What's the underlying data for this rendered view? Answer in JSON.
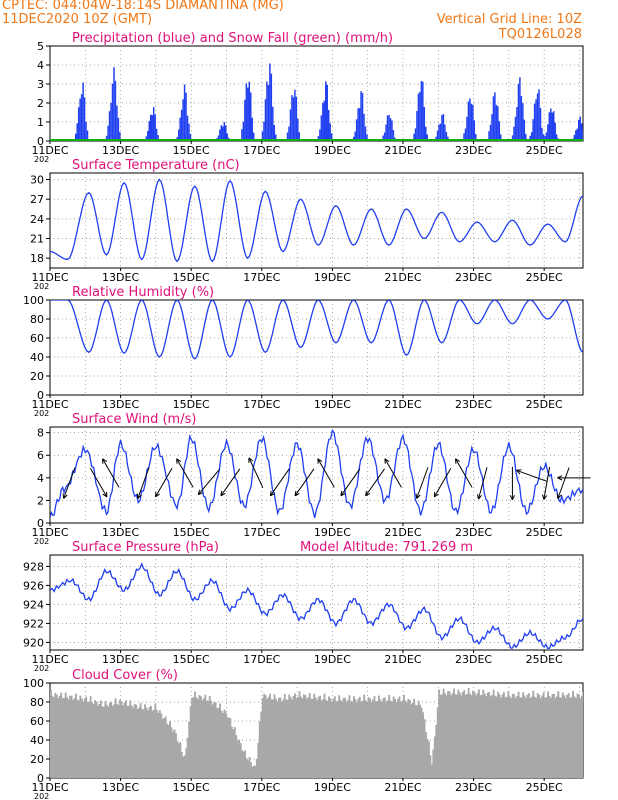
{
  "header": {
    "line1_left": "CPTEC:   044:04W-18:14S   DIAMANTINA (MG)",
    "line2_left": "11DEC2020 10Z (GMT)",
    "line1_right": "Vertical Grid Line: 10Z",
    "line2_right": "TQ0126L028"
  },
  "colors": {
    "header": "#f07818",
    "title": "#e0107a",
    "line": "#1f3ff0",
    "snow": "#10b010",
    "cloud": "#a8a8a8",
    "grid": "#888888"
  },
  "x_axis": {
    "tick_labels": [
      "11DEC",
      "13DEC",
      "15DEC",
      "17DEC",
      "19DEC",
      "21DEC",
      "23DEC",
      "25DEC"
    ],
    "year_fragment": "202",
    "days_span": 15.1
  },
  "chart_data": [
    {
      "id": "precip",
      "type": "bar",
      "title": "Precipitation (blue) and Snow Fall (green) (mm/h)",
      "ylim": [
        0,
        5
      ],
      "yticks": [
        "0",
        "1",
        "2",
        "3",
        "4",
        "5"
      ],
      "series": [
        {
          "name": "Precipitation",
          "peaks_day_amp": [
            [
              0.9,
              3.2
            ],
            [
              1.8,
              3.9
            ],
            [
              2.9,
              1.9
            ],
            [
              3.8,
              3.0
            ],
            [
              4.9,
              1.1
            ],
            [
              5.6,
              3.7
            ],
            [
              6.2,
              4.4
            ],
            [
              6.9,
              3.1
            ],
            [
              7.8,
              3.3
            ],
            [
              8.8,
              2.8
            ],
            [
              9.6,
              1.6
            ],
            [
              10.5,
              3.6
            ],
            [
              11.1,
              1.5
            ],
            [
              11.9,
              2.6
            ],
            [
              12.6,
              2.8
            ],
            [
              13.3,
              3.5
            ],
            [
              13.8,
              3.0
            ],
            [
              14.2,
              2.0
            ],
            [
              15.0,
              1.3
            ]
          ]
        },
        {
          "name": "Snow Fall",
          "value": 0
        }
      ]
    },
    {
      "id": "temp",
      "type": "line",
      "title": "Surface Temperature (nC)",
      "ylim": [
        16.5,
        31
      ],
      "yticks": [
        "18",
        "21",
        "24",
        "27",
        "30"
      ],
      "x": [
        0,
        0.5,
        1.1,
        1.6,
        2.1,
        2.6,
        3.1,
        3.6,
        4.1,
        4.6,
        5.1,
        5.6,
        6.1,
        6.6,
        7.1,
        7.6,
        8.1,
        8.6,
        9.1,
        9.6,
        10.1,
        10.6,
        11.1,
        11.6,
        12.1,
        12.6,
        13.1,
        13.6,
        14.1,
        14.6,
        15.1
      ],
      "values": [
        19.0,
        17.8,
        28.0,
        18.5,
        29.5,
        17.8,
        30.0,
        17.5,
        29.0,
        17.5,
        29.8,
        18.0,
        28.2,
        19.0,
        27.0,
        20.0,
        26.0,
        20.0,
        25.5,
        20.0,
        25.5,
        21.0,
        25.0,
        20.5,
        23.5,
        20.5,
        23.8,
        20.0,
        23.2,
        20.5,
        27.5
      ]
    },
    {
      "id": "rh",
      "type": "line",
      "title": "Relative Humidity (%)",
      "ylim": [
        0,
        100
      ],
      "yticks": [
        "0",
        "20",
        "40",
        "60",
        "80",
        "100"
      ],
      "x": [
        0,
        0.5,
        1.1,
        1.6,
        2.1,
        2.6,
        3.1,
        3.6,
        4.1,
        4.6,
        5.1,
        5.6,
        6.1,
        6.6,
        7.1,
        7.6,
        8.1,
        8.6,
        9.1,
        9.6,
        10.1,
        10.6,
        11.1,
        11.6,
        12.1,
        12.6,
        13.1,
        13.6,
        14.1,
        14.6,
        15.1
      ],
      "values": [
        100,
        100,
        45,
        100,
        44,
        100,
        40,
        100,
        38,
        100,
        40,
        100,
        45,
        100,
        50,
        100,
        55,
        100,
        55,
        100,
        42,
        100,
        55,
        100,
        75,
        100,
        75,
        100,
        80,
        100,
        45
      ]
    },
    {
      "id": "wind",
      "type": "line",
      "title": "Surface Wind (m/s)",
      "ylim": [
        0,
        8.5
      ],
      "yticks": [
        "0",
        "2",
        "4",
        "6",
        "8"
      ],
      "x": [
        0,
        0.4,
        1.0,
        1.6,
        2.0,
        2.5,
        3.0,
        3.6,
        4.0,
        4.5,
        5.0,
        5.5,
        6.0,
        6.5,
        7.0,
        7.5,
        8.0,
        8.5,
        9.0,
        9.5,
        10.0,
        10.5,
        11.0,
        11.5,
        12.0,
        12.5,
        13.0,
        13.5,
        14.0,
        14.5,
        15.1
      ],
      "values": [
        0.5,
        3.0,
        6.5,
        1.0,
        7.0,
        2.0,
        6.8,
        1.5,
        7.5,
        1.3,
        7.0,
        1.5,
        7.5,
        1.0,
        7.0,
        0.8,
        8.0,
        1.5,
        7.5,
        2.0,
        7.5,
        1.0,
        7.0,
        1.0,
        6.5,
        1.0,
        6.8,
        1.0,
        5.0,
        2.0,
        3.0
      ],
      "arrows_day_speed_dir": [
        [
          0.6,
          4,
          200
        ],
        [
          1.3,
          4,
          150
        ],
        [
          1.8,
          4,
          330
        ],
        [
          2.7,
          4,
          200
        ],
        [
          3.3,
          4,
          210
        ],
        [
          3.9,
          4,
          330
        ],
        [
          4.6,
          4,
          220
        ],
        [
          5.2,
          4,
          215
        ],
        [
          5.9,
          4,
          335
        ],
        [
          6.6,
          4,
          215
        ],
        [
          7.3,
          4,
          215
        ],
        [
          7.9,
          4,
          330
        ],
        [
          8.6,
          4,
          215
        ],
        [
          9.3,
          4,
          215
        ],
        [
          9.8,
          4,
          330
        ],
        [
          10.6,
          4,
          200
        ],
        [
          11.2,
          4,
          210
        ],
        [
          11.8,
          4,
          330
        ],
        [
          12.3,
          4,
          195
        ],
        [
          13.1,
          4,
          180
        ],
        [
          13.8,
          4,
          290
        ],
        [
          14.1,
          4,
          190
        ],
        [
          14.6,
          4,
          200
        ],
        [
          15.0,
          4,
          270
        ]
      ]
    },
    {
      "id": "pres",
      "type": "line",
      "title": "Surface Pressure (hPa)",
      "title2": "Model Altitude: 791.269 m",
      "ylim": [
        919.2,
        929.2
      ],
      "yticks": [
        "920",
        "922",
        "924",
        "926",
        "928"
      ],
      "x": [
        0,
        0.6,
        1.1,
        1.6,
        2.1,
        2.6,
        3.1,
        3.6,
        4.1,
        4.6,
        5.1,
        5.6,
        6.1,
        6.6,
        7.1,
        7.6,
        8.1,
        8.6,
        9.1,
        9.6,
        10.1,
        10.6,
        11.1,
        11.6,
        12.1,
        12.6,
        13.1,
        13.6,
        14.1,
        14.6,
        15.1
      ],
      "values": [
        925.5,
        926.5,
        924.5,
        927.5,
        925.5,
        928.0,
        925.0,
        927.5,
        924.5,
        926.5,
        923.5,
        925.5,
        923.0,
        925.0,
        922.5,
        924.5,
        922.0,
        924.5,
        922.0,
        924.0,
        921.5,
        923.5,
        920.5,
        922.5,
        920.0,
        921.5,
        919.5,
        921.0,
        919.5,
        920.5,
        922.5
      ]
    },
    {
      "id": "cloud",
      "type": "area",
      "title": "Cloud Cover (%)",
      "ylim": [
        0,
        100
      ],
      "yticks": [
        "0",
        "20",
        "40",
        "60",
        "80",
        "100"
      ],
      "x": [
        0,
        1.0,
        1.5,
        2.0,
        2.5,
        3.0,
        3.5,
        3.8,
        4.0,
        4.5,
        5.0,
        5.5,
        5.8,
        6.0,
        6.5,
        7.0,
        7.5,
        8.0,
        9.0,
        10.0,
        10.5,
        10.8,
        11.0,
        12.0,
        13.0,
        14.0,
        15.1
      ],
      "values": [
        93,
        88,
        82,
        85,
        80,
        78,
        55,
        25,
        92,
        88,
        72,
        30,
        15,
        92,
        88,
        92,
        90,
        88,
        88,
        88,
        82,
        20,
        95,
        95,
        92,
        92,
        92
      ]
    }
  ]
}
